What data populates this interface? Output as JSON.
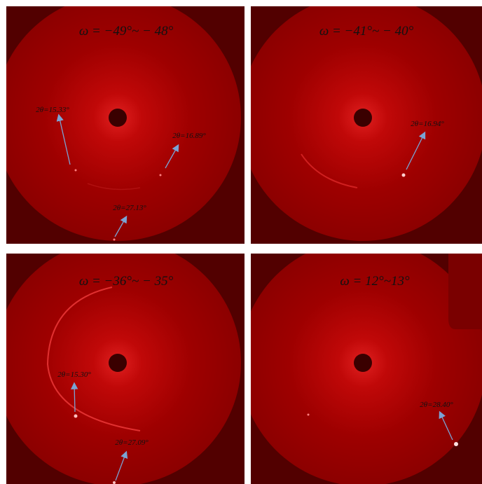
{
  "panels": [
    {
      "title": "ω = −49°~ − 48°",
      "annotations": [
        "2θ=15.33°",
        "2θ=16.89°",
        "2θ=27.13°"
      ]
    },
    {
      "title": "ω = −41°~ − 40°",
      "annotations": [
        "2θ=16.94°"
      ]
    },
    {
      "title": "ω = −36°~ − 35°",
      "annotations": [
        "2θ=15.30°",
        "2θ=27.09°"
      ]
    },
    {
      "title": "ω = 12°~13°",
      "annotations": [
        "2θ=28.40°"
      ]
    }
  ]
}
